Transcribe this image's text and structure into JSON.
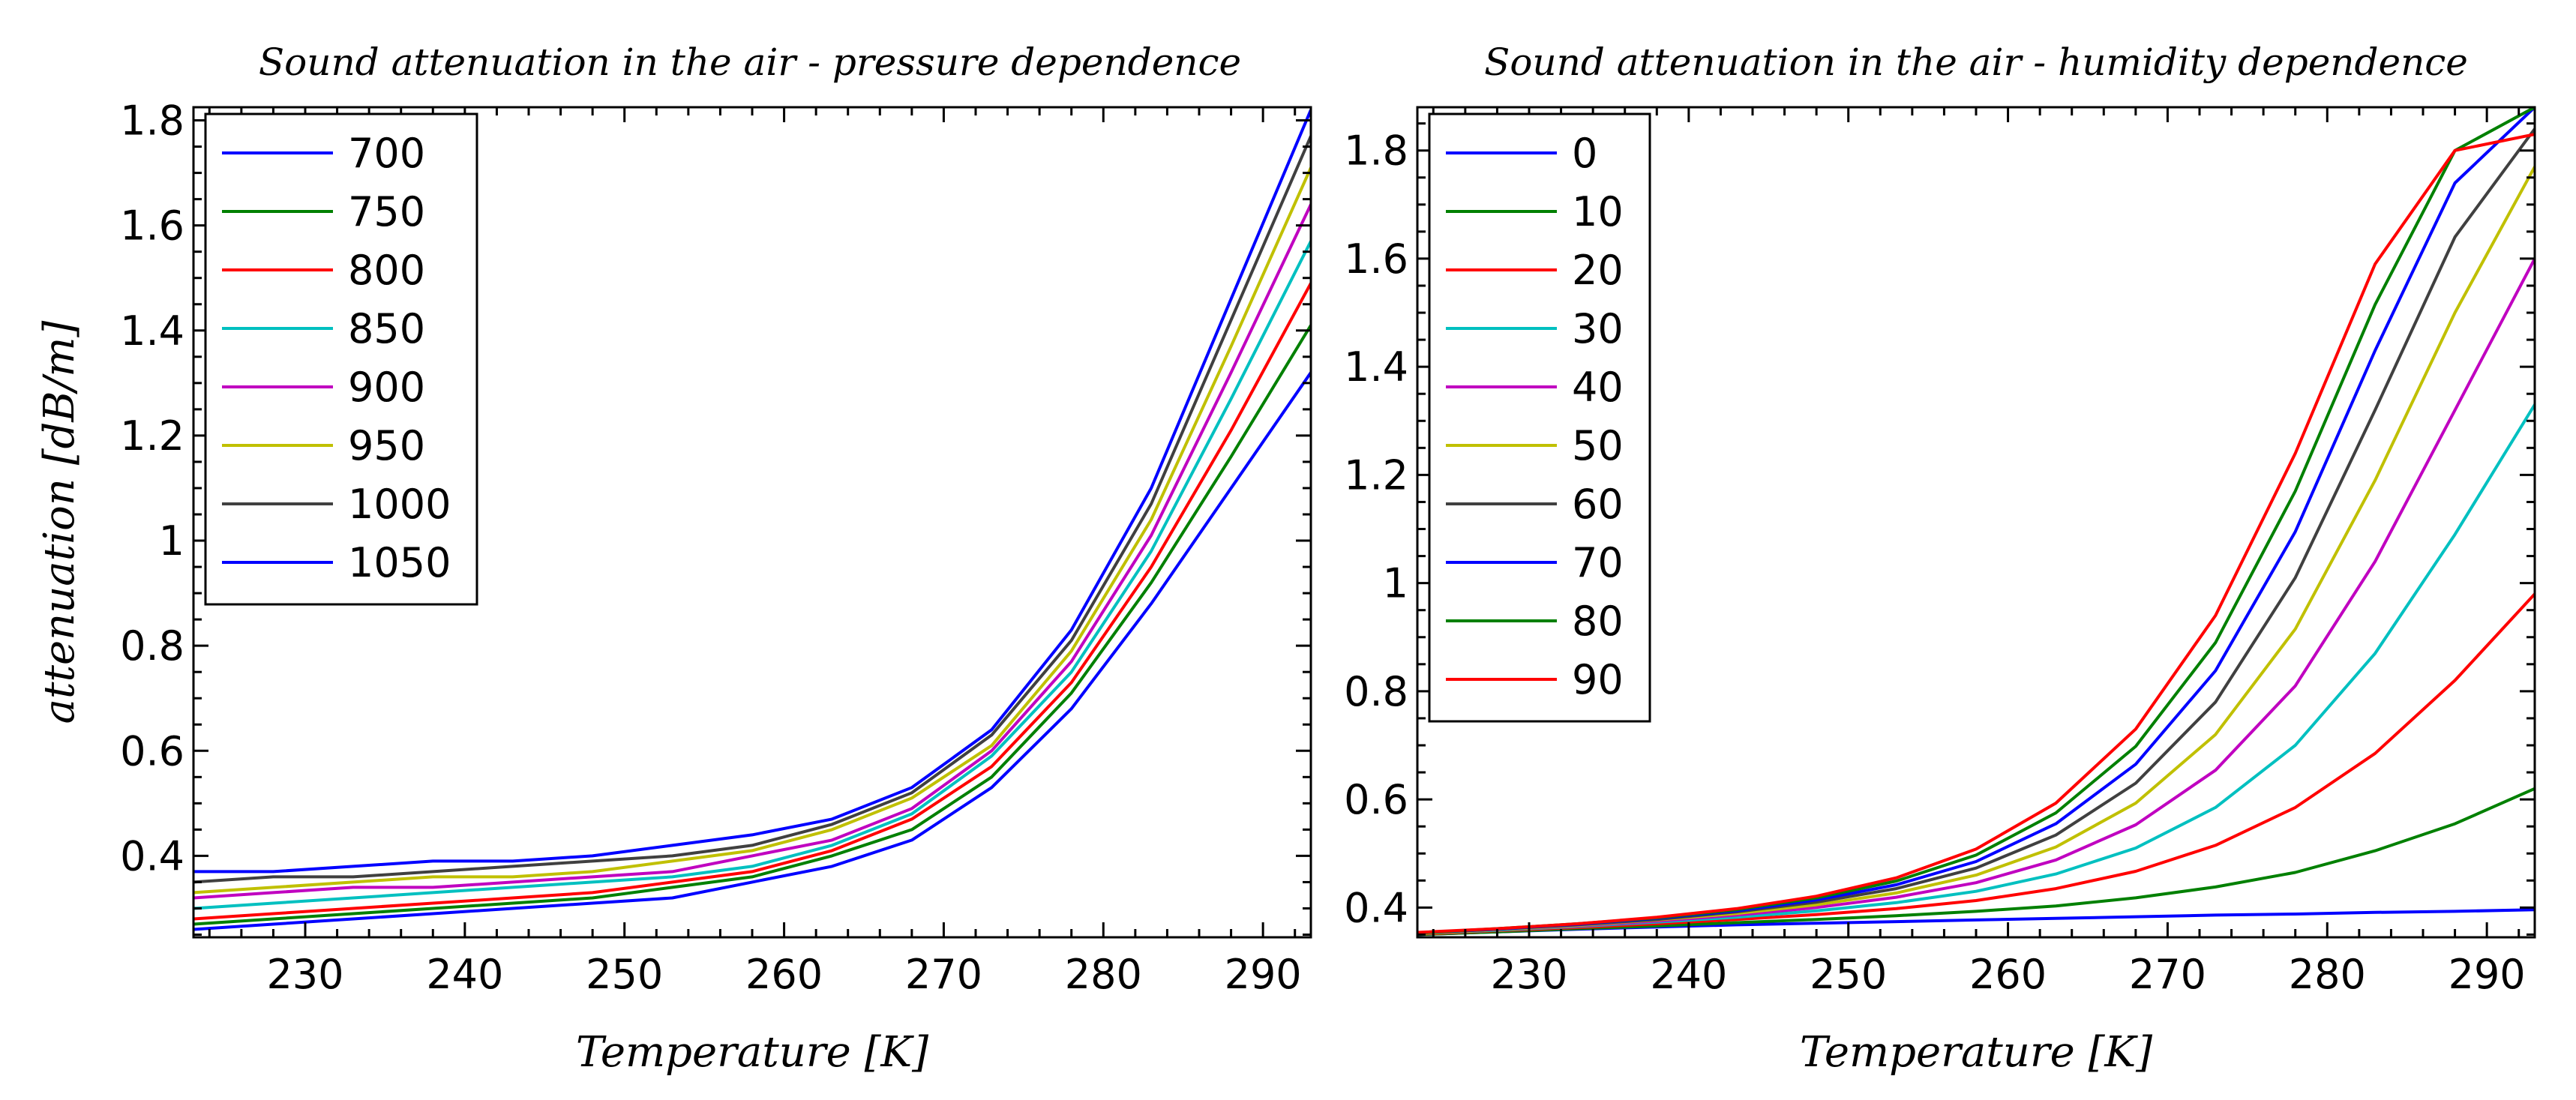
{
  "chart_data": [
    {
      "type": "line",
      "title": "Sound attenuation in the air - pressure dependence",
      "xlabel": "Temperature [K]",
      "ylabel": "attenuation [dB/m]",
      "xlim": [
        223,
        293
      ],
      "ylim": [
        0.245,
        1.825
      ],
      "x_ticks": [
        230,
        240,
        250,
        260,
        270,
        280,
        290
      ],
      "y_ticks": [
        0.4,
        0.6,
        0.8,
        1,
        1.2,
        1.4,
        1.6,
        1.8
      ],
      "grid": false,
      "legend": "top-left",
      "x": [
        223,
        228,
        233,
        238,
        243,
        248,
        253,
        258,
        263,
        268,
        273,
        278,
        283,
        288,
        293
      ],
      "series": [
        {
          "name": "700",
          "color": "#0000ff",
          "values": [
            0.26,
            0.27,
            0.28,
            0.29,
            0.3,
            0.31,
            0.32,
            0.35,
            0.38,
            0.43,
            0.53,
            0.68,
            0.88,
            1.1,
            1.32
          ]
        },
        {
          "name": "750",
          "color": "#008000",
          "values": [
            0.27,
            0.28,
            0.29,
            0.3,
            0.31,
            0.32,
            0.34,
            0.36,
            0.4,
            0.45,
            0.55,
            0.71,
            0.92,
            1.16,
            1.41
          ]
        },
        {
          "name": "800",
          "color": "#ff0000",
          "values": [
            0.28,
            0.29,
            0.3,
            0.31,
            0.32,
            0.33,
            0.35,
            0.37,
            0.41,
            0.47,
            0.57,
            0.73,
            0.95,
            1.21,
            1.49
          ]
        },
        {
          "name": "850",
          "color": "#00c0c0",
          "values": [
            0.3,
            0.31,
            0.32,
            0.33,
            0.34,
            0.35,
            0.36,
            0.38,
            0.42,
            0.48,
            0.59,
            0.75,
            0.98,
            1.27,
            1.57
          ]
        },
        {
          "name": "900",
          "color": "#c000c0",
          "values": [
            0.32,
            0.33,
            0.34,
            0.34,
            0.35,
            0.36,
            0.37,
            0.4,
            0.43,
            0.49,
            0.6,
            0.77,
            1.01,
            1.32,
            1.64
          ]
        },
        {
          "name": "950",
          "color": "#c0c000",
          "values": [
            0.33,
            0.34,
            0.35,
            0.36,
            0.36,
            0.37,
            0.39,
            0.41,
            0.45,
            0.51,
            0.61,
            0.79,
            1.04,
            1.37,
            1.71
          ]
        },
        {
          "name": "1000",
          "color": "#404040",
          "values": [
            0.35,
            0.36,
            0.36,
            0.37,
            0.38,
            0.39,
            0.4,
            0.42,
            0.46,
            0.52,
            0.63,
            0.81,
            1.07,
            1.42,
            1.77
          ]
        },
        {
          "name": "1050",
          "color": "#0000ff",
          "values": [
            0.37,
            0.37,
            0.38,
            0.39,
            0.39,
            0.4,
            0.42,
            0.44,
            0.47,
            0.53,
            0.64,
            0.83,
            1.1,
            1.46,
            1.82
          ]
        }
      ]
    },
    {
      "type": "line",
      "title": "Sound attenuation in the air - humidity dependence",
      "xlabel": "Temperature [K]",
      "ylabel": "",
      "xlim": [
        223,
        293
      ],
      "ylim": [
        0.345,
        1.88
      ],
      "x_ticks": [
        230,
        240,
        250,
        260,
        270,
        280,
        290
      ],
      "y_ticks": [
        0.4,
        0.6,
        0.8,
        1,
        1.2,
        1.4,
        1.6,
        1.8
      ],
      "grid": false,
      "legend": "top-left",
      "x": [
        223,
        228,
        233,
        238,
        243,
        248,
        253,
        258,
        263,
        268,
        273,
        278,
        283,
        288,
        293
      ],
      "series": [
        {
          "name": "0",
          "color": "#0000ff",
          "values": [
            0.35,
            0.355,
            0.36,
            0.364,
            0.368,
            0.371,
            0.374,
            0.377,
            0.38,
            0.383,
            0.386,
            0.388,
            0.391,
            0.393,
            0.396
          ]
        },
        {
          "name": "10",
          "color": "#008000",
          "values": [
            0.35,
            0.355,
            0.361,
            0.366,
            0.372,
            0.378,
            0.385,
            0.393,
            0.403,
            0.418,
            0.438,
            0.465,
            0.505,
            0.555,
            0.62
          ]
        },
        {
          "name": "20",
          "color": "#ff0000",
          "values": [
            0.351,
            0.357,
            0.363,
            0.37,
            0.378,
            0.387,
            0.398,
            0.413,
            0.435,
            0.467,
            0.515,
            0.585,
            0.685,
            0.82,
            0.98
          ]
        },
        {
          "name": "30",
          "color": "#00c0c0",
          "values": [
            0.352,
            0.358,
            0.365,
            0.373,
            0.382,
            0.394,
            0.409,
            0.43,
            0.462,
            0.51,
            0.585,
            0.7,
            0.87,
            1.09,
            1.33
          ]
        },
        {
          "name": "40",
          "color": "#c000c0",
          "values": [
            0.352,
            0.359,
            0.366,
            0.375,
            0.386,
            0.4,
            0.419,
            0.446,
            0.488,
            0.553,
            0.654,
            0.81,
            1.04,
            1.32,
            1.6
          ]
        },
        {
          "name": "50",
          "color": "#c0c000",
          "values": [
            0.352,
            0.359,
            0.367,
            0.377,
            0.389,
            0.405,
            0.427,
            0.46,
            0.512,
            0.593,
            0.72,
            0.915,
            1.19,
            1.5,
            1.77
          ]
        },
        {
          "name": "60",
          "color": "#404040",
          "values": [
            0.353,
            0.36,
            0.368,
            0.378,
            0.392,
            0.41,
            0.435,
            0.473,
            0.534,
            0.63,
            0.78,
            1.01,
            1.32,
            1.64,
            1.84
          ]
        },
        {
          "name": "70",
          "color": "#0000ff",
          "values": [
            0.353,
            0.36,
            0.369,
            0.38,
            0.394,
            0.414,
            0.442,
            0.485,
            0.555,
            0.665,
            0.838,
            1.095,
            1.43,
            1.74,
            1.88
          ]
        },
        {
          "name": "80",
          "color": "#008000",
          "values": [
            0.353,
            0.361,
            0.37,
            0.381,
            0.396,
            0.418,
            0.449,
            0.497,
            0.575,
            0.698,
            0.89,
            1.17,
            1.515,
            1.8,
            1.88
          ]
        },
        {
          "name": "90",
          "color": "#ff0000",
          "values": [
            0.354,
            0.361,
            0.37,
            0.382,
            0.398,
            0.421,
            0.455,
            0.508,
            0.593,
            0.73,
            0.94,
            1.24,
            1.59,
            1.8,
            1.83
          ]
        }
      ]
    }
  ]
}
